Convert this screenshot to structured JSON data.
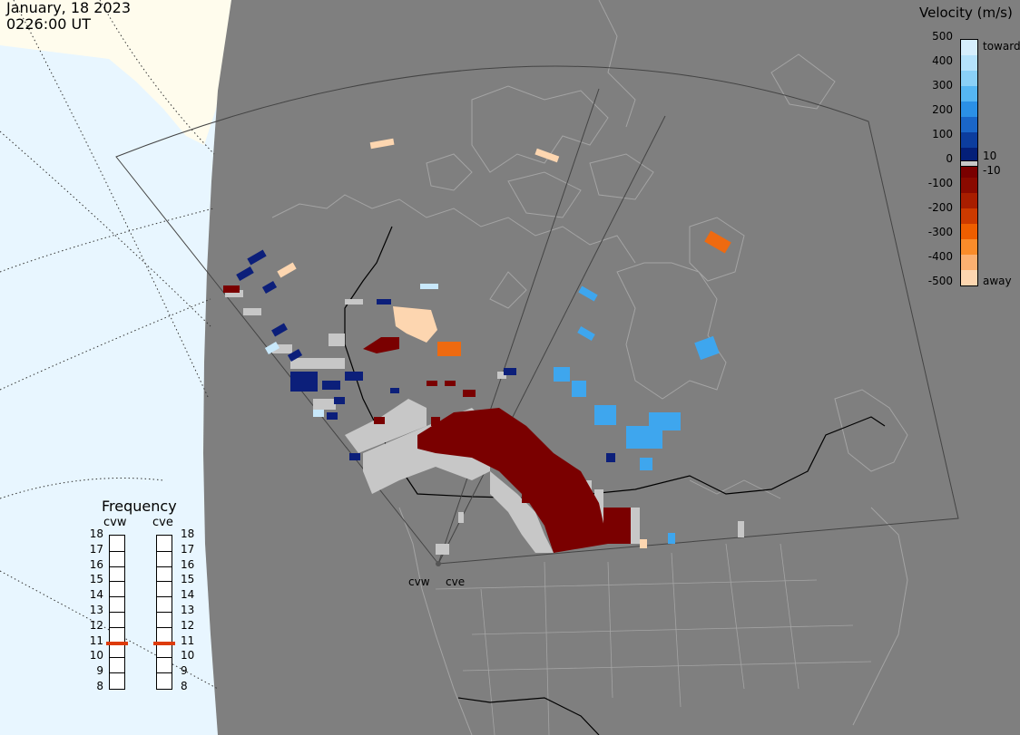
{
  "header": {
    "date": "January, 18 2023",
    "time": "0226:00 UT"
  },
  "legend": {
    "title": "Velocity (m/s)",
    "ticks": [
      "500",
      "400",
      "300",
      "200",
      "100",
      "0",
      "-100",
      "-200",
      "-300",
      "-400",
      "-500"
    ],
    "toward_label": "toward",
    "away_label": "away",
    "upper_threshold": "10",
    "lower_threshold": "-10",
    "colors": [
      "#d6eefc",
      "#b5e2fb",
      "#8ad0f7",
      "#55b6f3",
      "#2b90e6",
      "#1a66c8",
      "#0c3d9e",
      "#041f78",
      "#7a0000",
      "#8a0a00",
      "#a81e00",
      "#cc3a00",
      "#ee5e00",
      "#fa8c2a",
      "#fcb070",
      "#fdd6b0"
    ]
  },
  "frequency": {
    "title": "Frequency",
    "channels": [
      "cvw",
      "cve"
    ],
    "scale": [
      "18",
      "17",
      "16",
      "15",
      "14",
      "13",
      "12",
      "11",
      "10",
      "9",
      "8"
    ],
    "current_mhz": [
      10.9,
      10.9
    ],
    "marker_color": "#dd3b0a"
  },
  "radars": {
    "labels": [
      "cvw",
      "cve"
    ]
  },
  "map_colors": {
    "ocean": "#e8f6ff",
    "ice": "#fffced",
    "land_dim": "#7f7f7f",
    "ground_scatter": "#c7c7c7",
    "coast": "#a4a4a4",
    "border": "#000000"
  }
}
